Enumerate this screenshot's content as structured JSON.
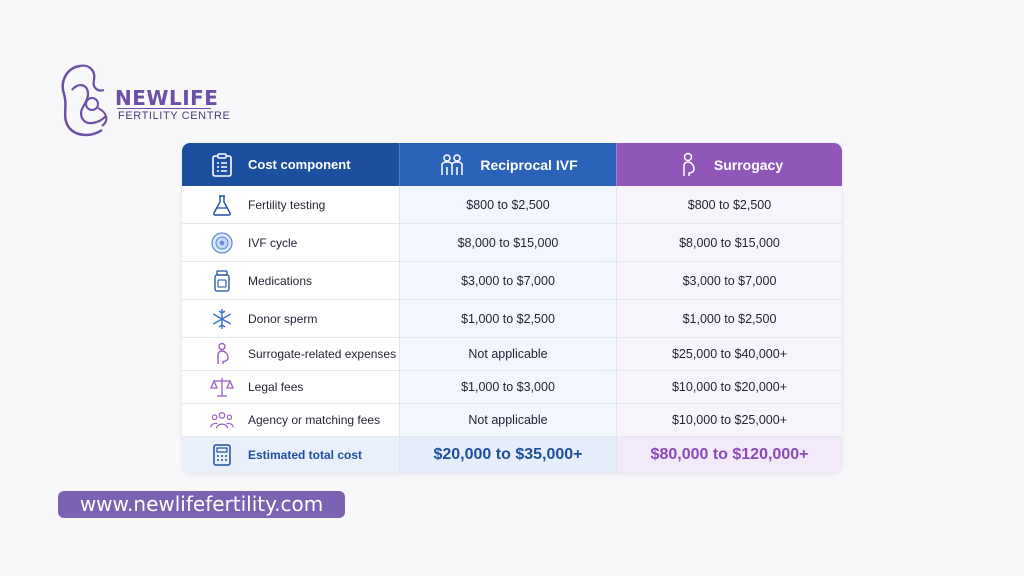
{
  "logo": {
    "name": "NEWLIFE",
    "subtitle": "FERTILITY CENTRE"
  },
  "table": {
    "headers": {
      "component": "Cost component",
      "reciprocal": "Reciprocal IVF",
      "surrogacy": "Surrogacy"
    },
    "rows": [
      {
        "icon": "flask-icon",
        "label": "Fertility testing",
        "reciprocal": "$800 to $2,500",
        "surrogacy": "$800 to $2,500"
      },
      {
        "icon": "egg-cell-icon",
        "label": "IVF cycle",
        "reciprocal": "$8,000 to $15,000",
        "surrogacy": "$8,000 to $15,000"
      },
      {
        "icon": "medicine-bottle-icon",
        "label": "Medications",
        "reciprocal": "$3,000 to $7,000",
        "surrogacy": "$3,000 to $7,000"
      },
      {
        "icon": "snowflake-icon",
        "label": "Donor sperm",
        "reciprocal": "$1,000 to $2,500",
        "surrogacy": "$1,000 to $2,500"
      },
      {
        "icon": "pregnant-woman-icon",
        "label": "Surrogate-related expenses",
        "reciprocal": "Not applicable",
        "surrogacy": "$25,000 to $40,000+"
      },
      {
        "icon": "scales-icon",
        "label": "Legal fees",
        "reciprocal": "$1,000 to $3,000",
        "surrogacy": "$10,000 to $20,000+"
      },
      {
        "icon": "group-icon",
        "label": "Agency or matching fees",
        "reciprocal": "Not applicable",
        "surrogacy": "$10,000 to $25,000+"
      }
    ],
    "total": {
      "label": "Estimated total cost",
      "reciprocal": "$20,000 to $35,000+",
      "surrogacy": "$80,000 to $120,000+"
    }
  },
  "website": "www.newlifefertility.com",
  "colors": {
    "blue": "#1d4f9f",
    "purple": "#9057b8",
    "brand": "#7b62b3"
  }
}
